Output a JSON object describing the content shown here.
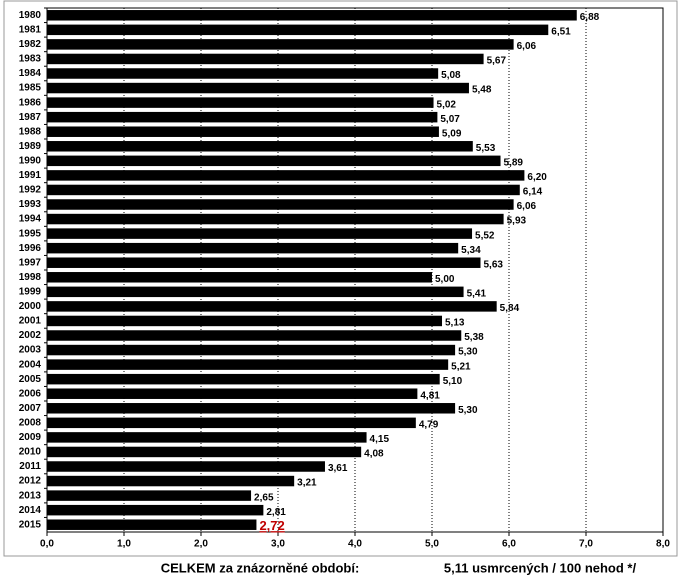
{
  "chart_data": {
    "type": "barh",
    "categories": [
      "1980",
      "1981",
      "1982",
      "1983",
      "1984",
      "1985",
      "1986",
      "1987",
      "1988",
      "1989",
      "1990",
      "1991",
      "1992",
      "1993",
      "1994",
      "1995",
      "1996",
      "1997",
      "1998",
      "1999",
      "2000",
      "2001",
      "2002",
      "2003",
      "2004",
      "2005",
      "2006",
      "2007",
      "2008",
      "2009",
      "2010",
      "2011",
      "2012",
      "2013",
      "2014",
      "2015"
    ],
    "values": [
      6.88,
      6.51,
      6.06,
      5.67,
      5.08,
      5.48,
      5.02,
      5.07,
      5.09,
      5.53,
      5.89,
      6.2,
      6.14,
      6.06,
      5.93,
      5.52,
      5.34,
      5.63,
      5.0,
      5.41,
      5.84,
      5.13,
      5.38,
      5.3,
      5.21,
      5.1,
      4.81,
      5.3,
      4.79,
      4.15,
      4.08,
      3.61,
      3.21,
      2.65,
      2.81,
      2.72
    ],
    "value_labels": [
      "6,88",
      "6,51",
      "6,06",
      "5,67",
      "5,08",
      "5,48",
      "5,02",
      "5,07",
      "5,09",
      "5,53",
      "5,89",
      "6,20",
      "6,14",
      "6,06",
      "5,93",
      "5,52",
      "5,34",
      "5,63",
      "5,00",
      "5,41",
      "5,84",
      "5,13",
      "5,38",
      "5,30",
      "5,21",
      "5,10",
      "4,81",
      "5,30",
      "4,79",
      "4,15",
      "4,08",
      "3,61",
      "3,21",
      "2,65",
      "2,81",
      "2,72"
    ],
    "color": "#000000",
    "highlight_index": 35,
    "highlight_color": "#c00000",
    "xlim": [
      0,
      8
    ],
    "xticks": [
      {
        "value": 0,
        "label": "0,0"
      },
      {
        "value": 1,
        "label": "1,0"
      },
      {
        "value": 2,
        "label": "2,0"
      },
      {
        "value": 3,
        "label": "3,0"
      },
      {
        "value": 4,
        "label": "4,0"
      },
      {
        "value": 5,
        "label": "5,0"
      },
      {
        "value": 6,
        "label": "6,0"
      },
      {
        "value": 7,
        "label": "7,0"
      },
      {
        "value": 8,
        "label": "8,0"
      }
    ],
    "grid": true,
    "footer_label": "CELKEM za znázorněné období:",
    "footer_value": "5,11 usmrcených / 100 nehod */"
  }
}
